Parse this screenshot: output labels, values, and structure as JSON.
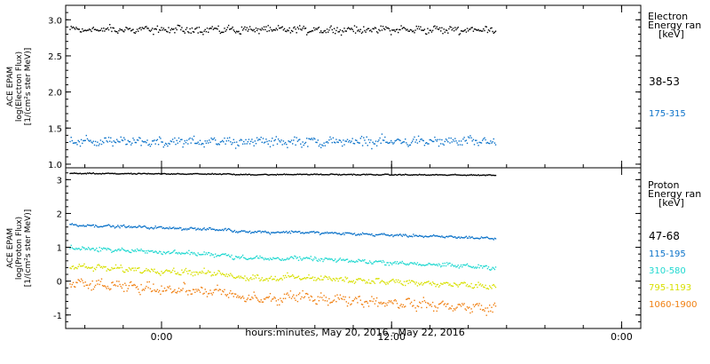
{
  "xaxis": {
    "label": "hours:minutes, May 20, 2016 - May 22, 2016",
    "ticks": [
      {
        "label": "0:00",
        "hours": 0
      },
      {
        "label": "12:00",
        "hours": 12
      },
      {
        "label": "0:00",
        "hours": 24
      }
    ],
    "range_hours": [
      -5,
      25
    ]
  },
  "chart_data": [
    {
      "type": "scatter",
      "ylabel": [
        "ACE EPAM",
        "log(Electron Flux)",
        "[1/(cm²s ster MeV)]"
      ],
      "ylim": [
        0.95,
        3.2
      ],
      "yticks": [
        1.0,
        1.5,
        2.0,
        2.5,
        3.0
      ],
      "ytick_labels": [
        "1.0",
        "1.5",
        "2.0",
        "2.5",
        "3.0"
      ],
      "x_range_hours": [
        -4.8,
        17.4
      ],
      "legend": {
        "title": [
          "Electron",
          "Energy ran",
          "[keV]"
        ],
        "placement": "right"
      },
      "series": [
        {
          "name": "38-53",
          "color": "#000000",
          "mean": 2.87,
          "spread": 0.07
        },
        {
          "name": "175-315",
          "color": "#0b72c9",
          "mean": 1.32,
          "spread": 0.09
        }
      ]
    },
    {
      "type": "scatter",
      "ylabel": [
        "ACE EPAM",
        "log(Proton Flux)",
        "[1/(cm²s ster MeV)]"
      ],
      "ylim": [
        -1.4,
        3.35
      ],
      "yticks": [
        -1,
        0,
        1,
        2,
        3
      ],
      "ytick_labels": [
        "-1",
        "0",
        "1",
        "2",
        "3"
      ],
      "x_range_hours": [
        -4.8,
        17.4
      ],
      "legend": {
        "title": [
          "Proton",
          "Energy ran",
          "[keV]"
        ],
        "placement": "right"
      },
      "series": [
        {
          "name": "47-68",
          "color": "#000000",
          "start": 3.2,
          "end": 3.15,
          "spread": 0.02
        },
        {
          "name": "115-195",
          "color": "#0b72c9",
          "start": 1.68,
          "end": 1.28,
          "spread": 0.05
        },
        {
          "name": "310-580",
          "color": "#20d8d0",
          "start": 1.0,
          "end": 0.42,
          "spread": 0.08
        },
        {
          "name": "795-1193",
          "color": "#d8e000",
          "start": 0.45,
          "end": -0.15,
          "spread": 0.12
        },
        {
          "name": "1060-1900",
          "color": "#f07f10",
          "start": -0.05,
          "end": -0.8,
          "spread": 0.2
        }
      ]
    }
  ]
}
